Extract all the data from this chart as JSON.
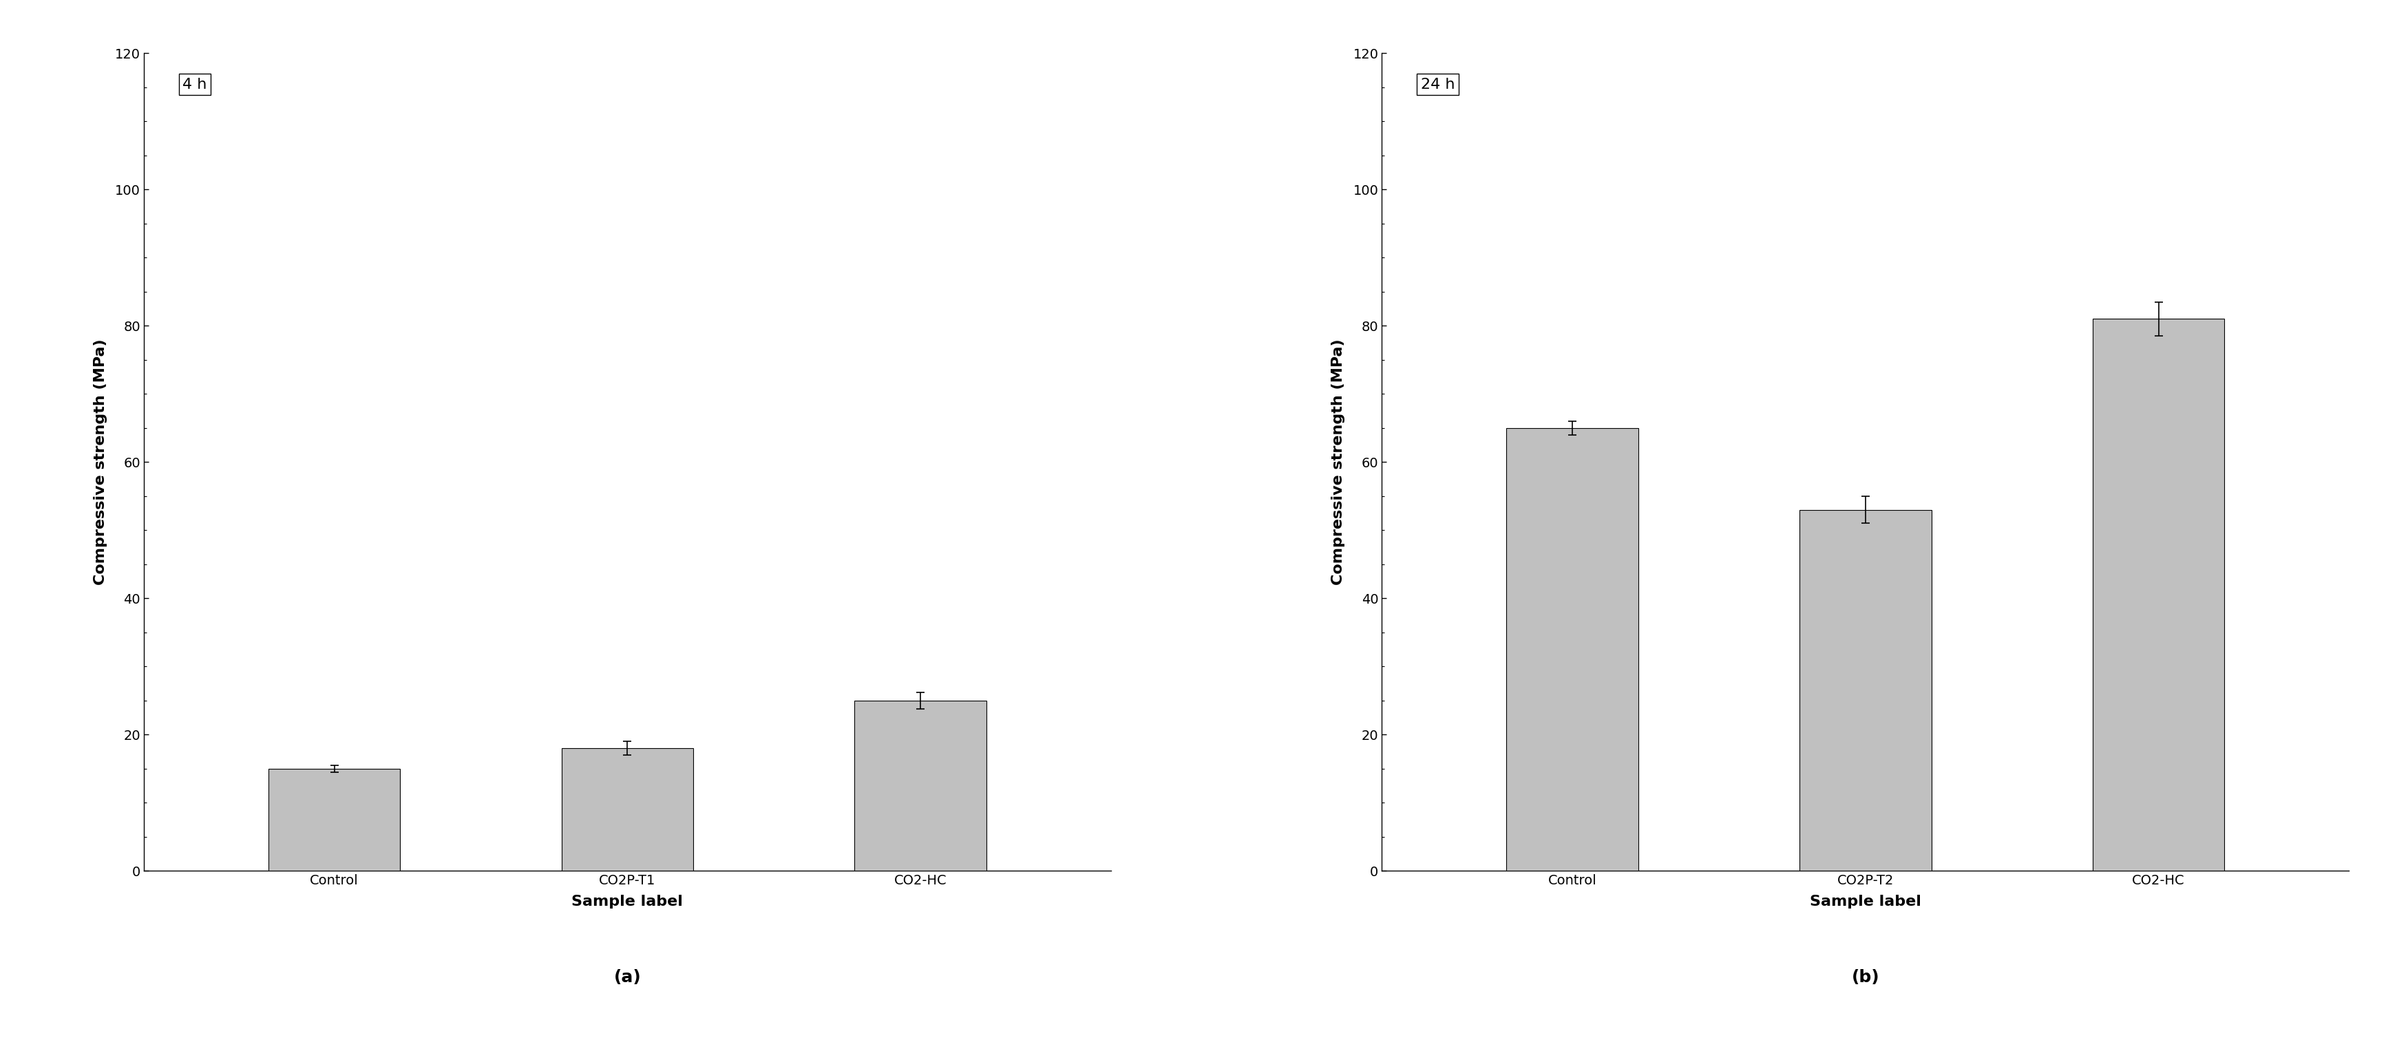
{
  "subplot_a": {
    "title": "4 h",
    "categories": [
      "Control",
      "CO2P-T1",
      "CO2-HC"
    ],
    "values": [
      15.0,
      18.0,
      25.0
    ],
    "errors": [
      0.5,
      1.0,
      1.2
    ],
    "ylabel": "Compressive strength (MPa)",
    "xlabel": "Sample label",
    "ylim": [
      0,
      120
    ],
    "yticks": [
      0,
      20,
      40,
      60,
      80,
      100,
      120
    ]
  },
  "subplot_b": {
    "title": "24 h",
    "categories": [
      "Control",
      "CO2P-T2",
      "CO2-HC"
    ],
    "values": [
      65.0,
      53.0,
      81.0
    ],
    "errors": [
      1.0,
      2.0,
      2.5
    ],
    "ylabel": "Compressive strength (MPa)",
    "xlabel": "Sample label",
    "ylim": [
      0,
      120
    ],
    "yticks": [
      0,
      20,
      40,
      60,
      80,
      100,
      120
    ]
  },
  "sublabels": [
    "(a)",
    "(b)"
  ],
  "bar_color": "#c0c0c0",
  "bar_edgecolor": "#000000",
  "bar_width": 0.45,
  "background_color": "#ffffff",
  "title_fontsize": 16,
  "axis_label_fontsize": 16,
  "tick_fontsize": 14,
  "sublabel_fontsize": 18,
  "error_capsize": 4,
  "error_linewidth": 1.2,
  "error_color": "#000000",
  "bar_linewidth": 0.8,
  "spine_linewidth": 1.0
}
